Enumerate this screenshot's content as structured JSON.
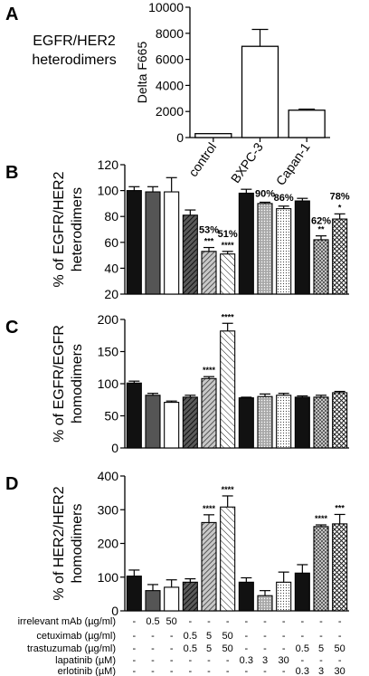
{
  "chart_data": [
    {
      "panel_letter": "A",
      "type": "bar",
      "title": "EGFR/HER2 heterodimers",
      "ylabel": "Delta F665",
      "ylim": [
        0,
        10000
      ],
      "yticks": [
        0,
        2000,
        4000,
        6000,
        8000,
        10000
      ],
      "grid": false,
      "categories": [
        "control",
        "BXPC-3",
        "Capan-1"
      ],
      "values": [
        300,
        7000,
        2100
      ],
      "errors": [
        0,
        1300,
        80
      ]
    },
    {
      "panel_letter": "B",
      "type": "bar",
      "ylabel": "% of EGFR/HER2 heterodimers",
      "ylim": [
        20,
        120
      ],
      "yticks": [
        20,
        40,
        60,
        80,
        100,
        120
      ],
      "grid": false,
      "values": [
        100,
        99,
        99,
        81,
        53,
        51,
        98,
        90,
        86,
        92,
        62,
        78
      ],
      "errors": [
        3,
        4,
        11,
        4,
        3,
        2,
        3,
        1,
        2,
        2,
        3,
        4
      ],
      "annotations": [
        "",
        "",
        "",
        "",
        "***",
        "****",
        "",
        "",
        "",
        "",
        "**",
        "*"
      ],
      "value_labels": [
        "",
        "",
        "",
        "",
        "53%",
        "51%",
        "",
        "90%",
        "86%",
        "",
        "62%",
        "78%"
      ]
    },
    {
      "panel_letter": "C",
      "type": "bar",
      "ylabel": "% of EGFR/EGFR homodimers",
      "ylim": [
        0,
        200
      ],
      "yticks": [
        0,
        50,
        100,
        150,
        200
      ],
      "grid": false,
      "values": [
        101,
        82,
        71,
        79,
        108,
        182,
        78,
        80,
        82,
        79,
        79,
        86
      ],
      "errors": [
        3,
        3,
        2,
        3,
        3,
        12,
        1,
        4,
        3,
        2,
        3,
        2
      ],
      "annotations": [
        "",
        "",
        "",
        "",
        "****",
        "****",
        "",
        "",
        "",
        "",
        "",
        ""
      ]
    },
    {
      "panel_letter": "D",
      "type": "bar",
      "ylabel": "% of HER2/HER2 homodimers",
      "ylim": [
        0,
        400
      ],
      "yticks": [
        0,
        100,
        200,
        300,
        400
      ],
      "grid": false,
      "values": [
        103,
        60,
        70,
        85,
        262,
        308,
        85,
        45,
        85,
        112,
        250,
        258
      ],
      "errors": [
        18,
        18,
        22,
        10,
        23,
        33,
        13,
        15,
        30,
        25,
        5,
        28
      ],
      "annotations": [
        "",
        "",
        "",
        "",
        "****",
        "****",
        "",
        "",
        "",
        "",
        "****",
        "***"
      ]
    }
  ],
  "treatment_table": [
    {
      "label": "irrelevant mAb (µg/ml)",
      "cells": [
        "-",
        "0.5",
        "50",
        "-",
        "-",
        "-",
        "-",
        "-",
        "-",
        "-",
        "-",
        "-"
      ]
    },
    {
      "label": "cetuximab (µg/ml)",
      "cells": [
        "-",
        "-",
        "-",
        "0.5",
        "5",
        "50",
        "-",
        "-",
        "-",
        "-",
        "-",
        "-"
      ]
    },
    {
      "label": "trastuzumab (µg/ml)",
      "cells": [
        "-",
        "-",
        "-",
        "0.5",
        "5",
        "50",
        "-",
        "-",
        "-",
        "0.5",
        "5",
        "50"
      ]
    },
    {
      "label": "lapatinib (µM)",
      "cells": [
        "-",
        "-",
        "-",
        "-",
        "-",
        "-",
        "0.3",
        "3",
        "30",
        "-",
        "-",
        "-"
      ]
    },
    {
      "label": "erlotinib (µM)",
      "cells": [
        "-",
        "-",
        "-",
        "-",
        "-",
        "-",
        "-",
        "-",
        "-",
        "0.3",
        "3",
        "30"
      ]
    }
  ],
  "bar_fill_patterns": [
    "black",
    "darkgray",
    "white",
    "diag-dense",
    "diag-gray",
    "diag-white",
    "black",
    "dots-gray",
    "dots-white",
    "black",
    "cross-dark",
    "cross-white"
  ],
  "colors": {
    "black": "#111111",
    "darkgray": "#555555",
    "white": "#ffffff",
    "lightgray": "#b5b5b5"
  }
}
